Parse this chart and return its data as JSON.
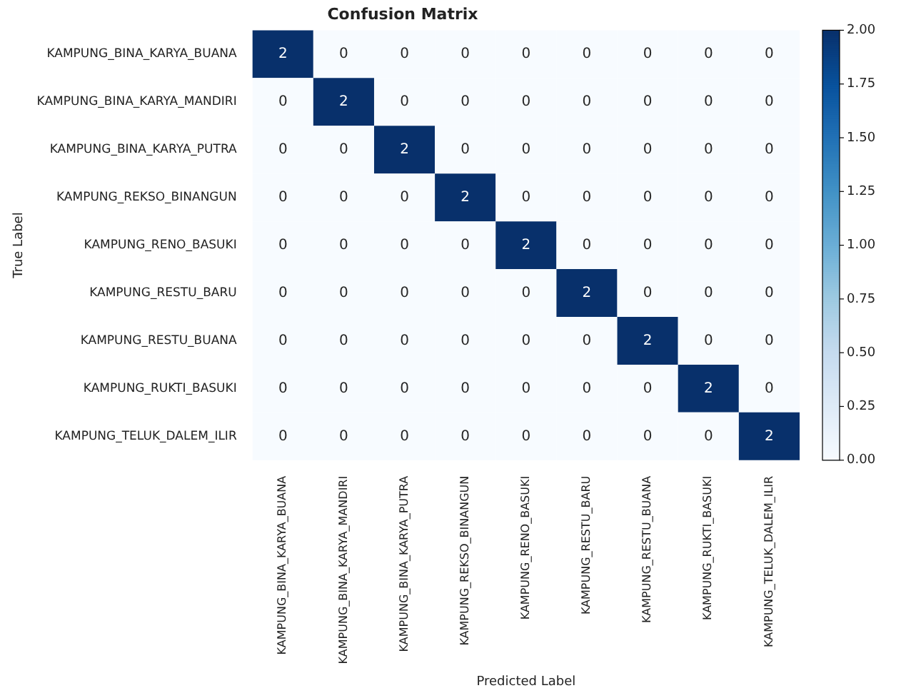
{
  "chart_data": {
    "type": "heatmap",
    "title": "Confusion Matrix",
    "xlabel": "Predicted Label",
    "ylabel": "True Label",
    "categories": [
      "KAMPUNG_BINA_KARYA_BUANA",
      "KAMPUNG_BINA_KARYA_MANDIRI",
      "KAMPUNG_BINA_KARYA_PUTRA",
      "KAMPUNG_REKSO_BINANGUN",
      "KAMPUNG_RENO_BASUKI",
      "KAMPUNG_RESTU_BARU",
      "KAMPUNG_RESTU_BUANA",
      "KAMPUNG_RUKTI_BASUKI",
      "KAMPUNG_TELUK_DALEM_ILIR"
    ],
    "y_categories": [
      "KAMPUNG_BINA_KARYA_BUANA",
      "KAMPUNG_BINA_KARYA_MANDIRI",
      "KAMPUNG_BINA_KARYA_PUTRA",
      "KAMPUNG_REKSO_BINANGUN",
      "KAMPUNG_RENO_BASUKI",
      "KAMPUNG_RESTU_BARU",
      "KAMPUNG_RESTU_BUANA",
      "KAMPUNG_RUKTI_BASUKI",
      "KAMPUNG_TELUK_DALEM_ILIR"
    ],
    "cells": [
      [
        2,
        0,
        0,
        0,
        0,
        0,
        0,
        0,
        0
      ],
      [
        0,
        2,
        0,
        0,
        0,
        0,
        0,
        0,
        0
      ],
      [
        0,
        0,
        2,
        0,
        0,
        0,
        0,
        0,
        0
      ],
      [
        0,
        0,
        0,
        2,
        0,
        0,
        0,
        0,
        0
      ],
      [
        0,
        0,
        0,
        0,
        2,
        0,
        0,
        0,
        0
      ],
      [
        0,
        0,
        0,
        0,
        0,
        2,
        0,
        0,
        0
      ],
      [
        0,
        0,
        0,
        0,
        0,
        0,
        2,
        0,
        0
      ],
      [
        0,
        0,
        0,
        0,
        0,
        0,
        0,
        2,
        0
      ],
      [
        0,
        0,
        0,
        0,
        0,
        0,
        0,
        0,
        2
      ]
    ],
    "data_labels": true,
    "clim": [
      0,
      2
    ],
    "cticks": [
      {
        "value": 0,
        "label": "0.00"
      },
      {
        "value": 0.25,
        "label": "0.25"
      },
      {
        "value": 0.5,
        "label": "0.50"
      },
      {
        "value": 0.75,
        "label": "0.75"
      },
      {
        "value": 1,
        "label": "1.00"
      },
      {
        "value": 1.25,
        "label": "1.25"
      },
      {
        "value": 1.5,
        "label": "1.50"
      },
      {
        "value": 1.75,
        "label": "1.75"
      },
      {
        "value": 2,
        "label": "2.00"
      }
    ]
  }
}
